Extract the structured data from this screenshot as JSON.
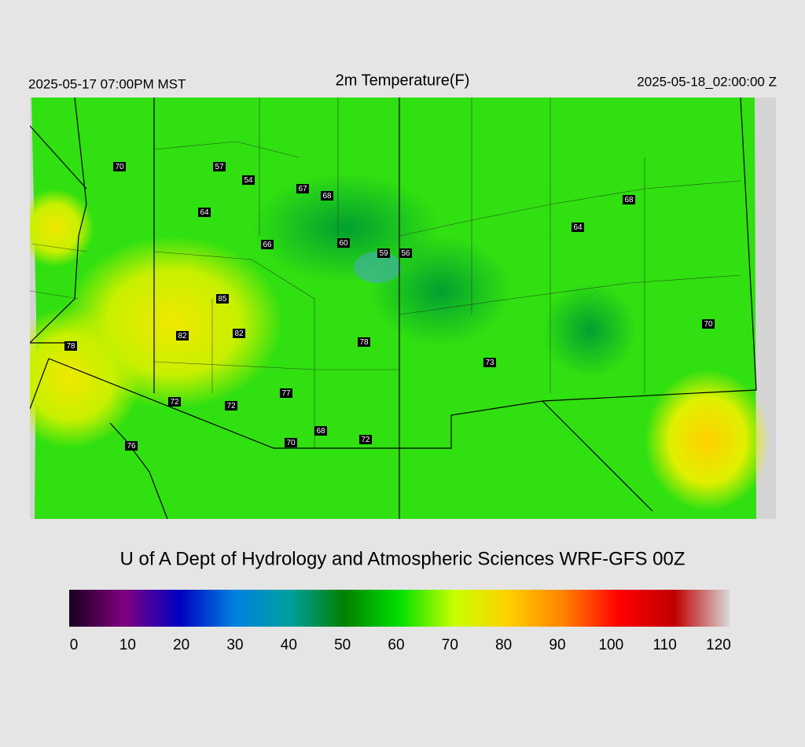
{
  "header": {
    "left": "2025-05-17 07:00PM MST",
    "title": "2m Temperature(F)",
    "right": "2025-05-18_02:00:00 Z"
  },
  "map": {
    "station_values": [
      70,
      57,
      54,
      67,
      68,
      64,
      66,
      60,
      59,
      56,
      64,
      68,
      85,
      82,
      82,
      78,
      78,
      73,
      70,
      72,
      72,
      77,
      68,
      70,
      72,
      76
    ]
  },
  "footer": "U of A Dept of Hydrology and Atmospheric Sciences WRF-GFS 00Z",
  "colorbar": {
    "lim": [
      0,
      120
    ],
    "ticks": [
      0,
      10,
      20,
      30,
      40,
      50,
      60,
      70,
      80,
      90,
      100,
      110,
      120
    ],
    "colors": [
      "#1a0020",
      "#800080",
      "#0000c0",
      "#0080e0",
      "#00a0a0",
      "#008000",
      "#00e000",
      "#c8ff00",
      "#ffd000",
      "#ff8000",
      "#ff0000",
      "#c00000",
      "#d8d8d8"
    ]
  }
}
